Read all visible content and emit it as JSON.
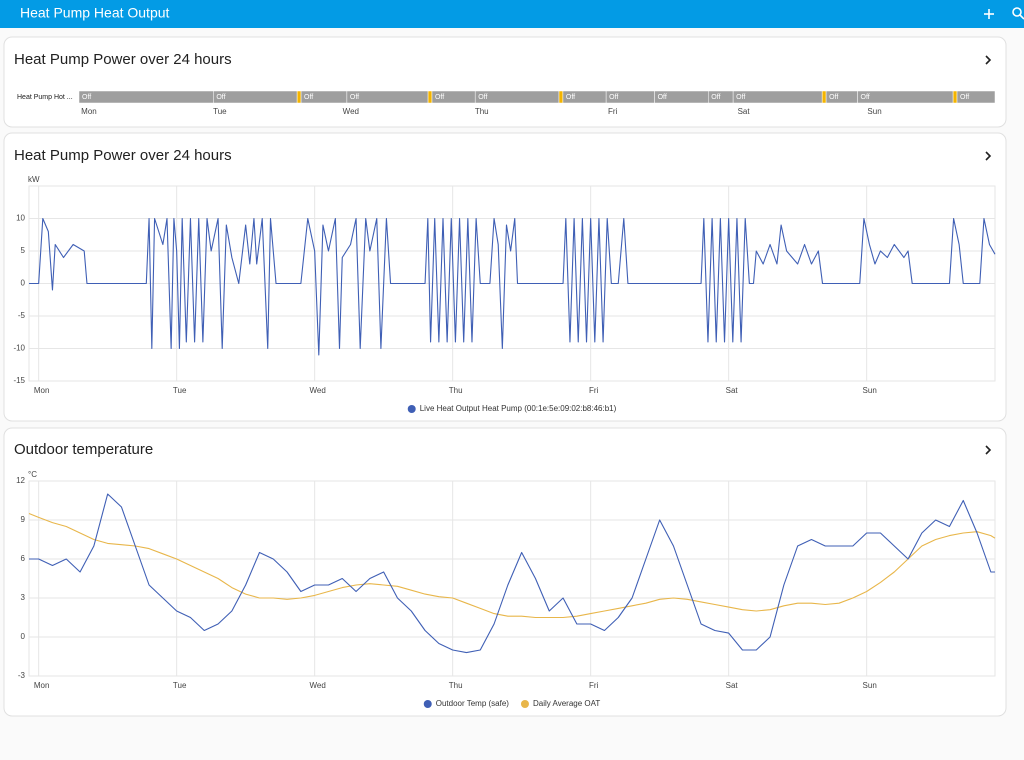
{
  "header": {
    "title": "Heat Pump Heat Output"
  },
  "chart_data": [
    {
      "type": "timeline",
      "title": "Heat Pump Power over 24 hours",
      "row_label": "Heat Pump Hot ...",
      "xlim": [
        -0.076,
        6.92
      ],
      "xticks": [
        {
          "value": 0,
          "label": "Mon"
        },
        {
          "value": 1,
          "label": "Tue"
        },
        {
          "value": 2,
          "label": "Wed"
        },
        {
          "value": 3,
          "label": "Thu"
        },
        {
          "value": 4,
          "label": "Fri"
        },
        {
          "value": 5,
          "label": "Sat"
        },
        {
          "value": 6,
          "label": "Sun"
        }
      ],
      "segments": [
        {
          "start": -0.076,
          "end": 0.95,
          "label": "Off",
          "color": "#9e9e9e"
        },
        {
          "start": 0.95,
          "end": 1.59,
          "label": "Off",
          "color": "#9e9e9e"
        },
        {
          "start": 1.59,
          "end": 1.62,
          "color": "#f4b400"
        },
        {
          "start": 1.62,
          "end": 1.97,
          "label": "Off",
          "color": "#9e9e9e"
        },
        {
          "start": 1.97,
          "end": 2.59,
          "label": "Off",
          "color": "#9e9e9e"
        },
        {
          "start": 2.59,
          "end": 2.62,
          "color": "#f4b400"
        },
        {
          "start": 2.62,
          "end": 2.95,
          "label": "Off",
          "color": "#9e9e9e"
        },
        {
          "start": 2.95,
          "end": 3.59,
          "label": "Off",
          "color": "#9e9e9e"
        },
        {
          "start": 3.59,
          "end": 3.62,
          "color": "#f4b400"
        },
        {
          "start": 3.62,
          "end": 3.95,
          "label": "Off",
          "color": "#9e9e9e"
        },
        {
          "start": 3.95,
          "end": 4.32,
          "label": "Off",
          "color": "#9e9e9e"
        },
        {
          "start": 4.32,
          "end": 4.73,
          "label": "Off",
          "color": "#9e9e9e"
        },
        {
          "start": 4.73,
          "end": 4.92,
          "label": "Off",
          "color": "#9e9e9e"
        },
        {
          "start": 4.92,
          "end": 5.6,
          "label": "Off",
          "color": "#9e9e9e"
        },
        {
          "start": 5.6,
          "end": 5.63,
          "color": "#f4b400"
        },
        {
          "start": 5.63,
          "end": 5.87,
          "label": "Off",
          "color": "#9e9e9e"
        },
        {
          "start": 5.87,
          "end": 6.6,
          "label": "Off",
          "color": "#9e9e9e"
        },
        {
          "start": 6.6,
          "end": 6.63,
          "color": "#f4b400"
        },
        {
          "start": 6.63,
          "end": 6.92,
          "label": "Off",
          "color": "#9e9e9e"
        }
      ]
    },
    {
      "type": "line",
      "title": "Heat Pump Power over 24 hours",
      "y_unit": "kW",
      "grid": true,
      "xlim": [
        -0.07,
        6.93
      ],
      "ylim": [
        -15,
        15
      ],
      "yticks": [
        -15,
        -10,
        -5,
        0,
        5,
        10
      ],
      "xticks": [
        {
          "value": 0,
          "label": "Mon"
        },
        {
          "value": 1,
          "label": "Tue"
        },
        {
          "value": 2,
          "label": "Wed"
        },
        {
          "value": 3,
          "label": "Thu"
        },
        {
          "value": 4,
          "label": "Fri"
        },
        {
          "value": 5,
          "label": "Sat"
        },
        {
          "value": 6,
          "label": "Sun"
        }
      ],
      "x": [
        -0.07,
        0,
        0.03,
        0.07,
        0.1,
        0.12,
        0.18,
        0.25,
        0.33,
        0.35,
        0.78,
        0.8,
        0.82,
        0.84,
        0.9,
        0.93,
        0.96,
        0.98,
        1.0,
        1.02,
        1.04,
        1.07,
        1.1,
        1.13,
        1.16,
        1.19,
        1.22,
        1.25,
        1.3,
        1.33,
        1.36,
        1.4,
        1.45,
        1.5,
        1.53,
        1.56,
        1.58,
        1.62,
        1.66,
        1.68,
        1.72,
        1.9,
        1.95,
        2.0,
        2.03,
        2.06,
        2.1,
        2.15,
        2.18,
        2.2,
        2.26,
        2.3,
        2.33,
        2.37,
        2.4,
        2.45,
        2.48,
        2.52,
        2.55,
        2.8,
        2.82,
        2.84,
        2.87,
        2.9,
        2.93,
        2.96,
        2.99,
        3.02,
        3.05,
        3.08,
        3.11,
        3.14,
        3.17,
        3.2,
        3.27,
        3.3,
        3.33,
        3.36,
        3.39,
        3.42,
        3.45,
        3.47,
        3.8,
        3.82,
        3.85,
        3.88,
        3.91,
        3.94,
        3.97,
        4.0,
        4.03,
        4.06,
        4.09,
        4.12,
        4.15,
        4.2,
        4.24,
        4.27,
        4.8,
        4.82,
        4.85,
        4.88,
        4.91,
        4.94,
        4.97,
        5.0,
        5.03,
        5.06,
        5.09,
        5.12,
        5.15,
        5.18,
        5.2,
        5.25,
        5.3,
        5.35,
        5.38,
        5.42,
        5.46,
        5.5,
        5.55,
        5.6,
        5.65,
        5.68,
        5.95,
        5.98,
        6.02,
        6.06,
        6.1,
        6.15,
        6.2,
        6.27,
        6.3,
        6.33,
        6.6,
        6.63,
        6.67,
        6.7,
        6.82,
        6.85,
        6.89,
        6.93
      ],
      "series": [
        {
          "name": "Live Heat Output Heat Pump (00:1e:5e:09:02:b8:46:b1)",
          "color": "#3f5fb5",
          "values": [
            0,
            0,
            10,
            8,
            -1,
            6,
            4,
            6,
            5,
            0,
            0,
            10,
            -10,
            10,
            6,
            10,
            -10,
            10,
            5,
            -10,
            10,
            -9,
            10,
            -9,
            10,
            -9,
            10,
            5,
            10,
            -10,
            9,
            4,
            0,
            9,
            3,
            10,
            3,
            10,
            -10,
            10,
            0,
            0,
            10,
            5,
            -11,
            9,
            5,
            10,
            -10,
            4,
            6,
            10,
            -10,
            10,
            5,
            10,
            -10,
            10,
            0,
            0,
            10,
            -9,
            10,
            -9,
            10,
            -9,
            10,
            -9,
            10,
            -9,
            10,
            -9,
            10,
            0,
            0,
            10,
            6,
            -10,
            9,
            5,
            10,
            0,
            0,
            10,
            -9,
            10,
            -9,
            10,
            -9,
            10,
            -9,
            10,
            -9,
            10,
            0,
            0,
            10,
            0,
            0,
            10,
            -9,
            10,
            -9,
            10,
            -9,
            10,
            -9,
            10,
            -9,
            10,
            0,
            0,
            5,
            3,
            6,
            3,
            9,
            5,
            4,
            3,
            6,
            3,
            5,
            0,
            0,
            10,
            6,
            3,
            5,
            4,
            6,
            4,
            5,
            0,
            0,
            10,
            6,
            0,
            0,
            10,
            6,
            4.5
          ]
        }
      ]
    },
    {
      "type": "line",
      "title": "Outdoor temperature",
      "y_unit": "°C",
      "grid": true,
      "xlim": [
        -0.07,
        6.93
      ],
      "ylim": [
        -3,
        12
      ],
      "yticks": [
        -3,
        0,
        3,
        6,
        9,
        12
      ],
      "xticks": [
        {
          "value": 0,
          "label": "Mon"
        },
        {
          "value": 1,
          "label": "Tue"
        },
        {
          "value": 2,
          "label": "Wed"
        },
        {
          "value": 3,
          "label": "Thu"
        },
        {
          "value": 4,
          "label": "Fri"
        },
        {
          "value": 5,
          "label": "Sat"
        },
        {
          "value": 6,
          "label": "Sun"
        }
      ],
      "x": [
        -0.07,
        0,
        0.1,
        0.2,
        0.3,
        0.4,
        0.5,
        0.6,
        0.7,
        0.8,
        0.9,
        1.0,
        1.1,
        1.2,
        1.3,
        1.4,
        1.5,
        1.6,
        1.7,
        1.8,
        1.9,
        2.0,
        2.1,
        2.2,
        2.3,
        2.4,
        2.5,
        2.6,
        2.7,
        2.8,
        2.9,
        3.0,
        3.1,
        3.2,
        3.3,
        3.4,
        3.5,
        3.6,
        3.7,
        3.8,
        3.9,
        4.0,
        4.1,
        4.2,
        4.3,
        4.4,
        4.5,
        4.6,
        4.7,
        4.8,
        4.9,
        5.0,
        5.1,
        5.2,
        5.3,
        5.4,
        5.5,
        5.6,
        5.7,
        5.8,
        5.9,
        6.0,
        6.1,
        6.2,
        6.3,
        6.4,
        6.5,
        6.6,
        6.7,
        6.8,
        6.9,
        6.93
      ],
      "series": [
        {
          "name": "Outdoor Temp (safe)",
          "color": "#3f5fb5",
          "values": [
            6,
            6,
            5.5,
            6,
            5,
            7,
            11,
            10,
            7,
            4,
            3,
            2,
            1.5,
            0.5,
            1,
            2,
            4,
            6.5,
            6,
            5,
            3.5,
            4,
            4,
            4.5,
            3.5,
            4.5,
            5,
            3,
            2,
            0.5,
            -0.5,
            -1,
            -1.2,
            -1,
            1,
            4,
            6.5,
            4.5,
            2,
            3,
            1,
            1,
            0.5,
            1.5,
            3,
            6,
            9,
            7,
            4,
            1,
            0.5,
            0.3,
            -1,
            -1,
            0,
            4,
            7,
            7.5,
            7,
            7,
            7,
            8,
            8,
            7,
            6,
            8,
            9,
            8.5,
            10.5,
            8,
            5,
            5
          ]
        },
        {
          "name": "Daily Average OAT",
          "color": "#e8b64a",
          "values": [
            9.5,
            9.2,
            8.8,
            8.5,
            8,
            7.5,
            7.2,
            7.1,
            7,
            6.8,
            6.4,
            6,
            5.5,
            5,
            4.5,
            3.8,
            3.3,
            3,
            3,
            2.9,
            3,
            3.2,
            3.5,
            3.8,
            4,
            4.1,
            4,
            3.9,
            3.6,
            3.3,
            3.1,
            3,
            2.6,
            2.2,
            1.8,
            1.6,
            1.6,
            1.5,
            1.5,
            1.5,
            1.6,
            1.8,
            2,
            2.2,
            2.4,
            2.6,
            2.9,
            3,
            2.9,
            2.7,
            2.5,
            2.3,
            2.1,
            2,
            2.1,
            2.4,
            2.6,
            2.6,
            2.5,
            2.6,
            3,
            3.5,
            4.2,
            5,
            6,
            7,
            7.5,
            7.8,
            8,
            8.1,
            7.8,
            7.6
          ]
        }
      ]
    }
  ]
}
